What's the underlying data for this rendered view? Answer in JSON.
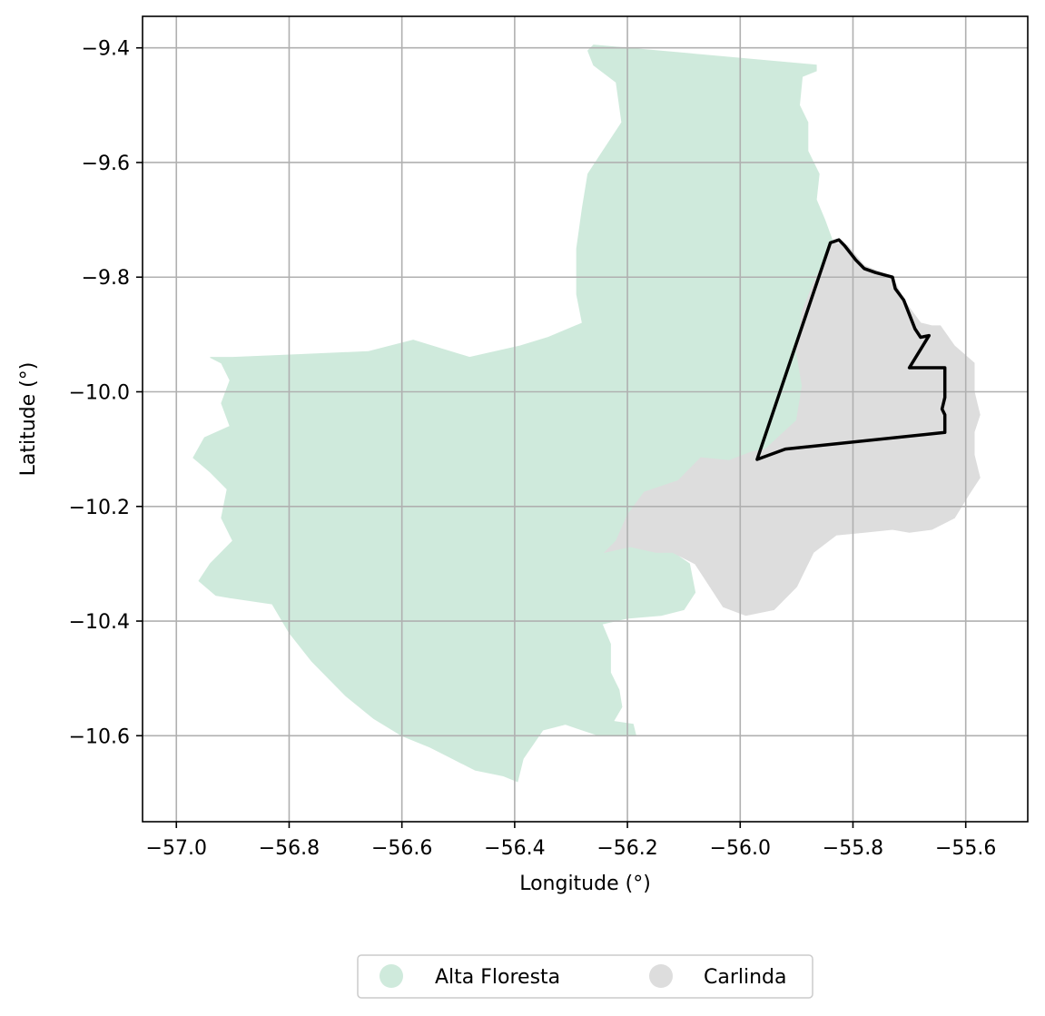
{
  "chart_data": {
    "type": "map",
    "xlabel": "Longitude (°)",
    "ylabel": "Latitude (°)",
    "xlim": [
      -57.06,
      -55.49
    ],
    "ylim": [
      -10.75,
      -9.345
    ],
    "x_ticks": [
      -57.0,
      -56.8,
      -56.6,
      -56.4,
      -56.2,
      -56.0,
      -55.8,
      -55.6
    ],
    "x_tick_labels": [
      "−57.0",
      "−56.8",
      "−56.6",
      "−56.4",
      "−56.2",
      "−56.0",
      "−55.8",
      "−55.6"
    ],
    "y_ticks": [
      -9.4,
      -9.6,
      -9.8,
      -10.0,
      -10.2,
      -10.4,
      -10.6
    ],
    "y_tick_labels": [
      "−9.4",
      "−9.6",
      "−9.8",
      "−10.0",
      "−10.2",
      "−10.4",
      "−10.6"
    ],
    "grid": true,
    "legend_position": "bottom-center",
    "regions": [
      {
        "name": "Alta Floresta",
        "color": "#cfeadc",
        "polygon": [
          [
            -56.27,
            -9.405
          ],
          [
            -56.26,
            -9.395
          ],
          [
            -55.865,
            -9.43
          ],
          [
            -55.865,
            -9.44
          ],
          [
            -55.89,
            -9.45
          ],
          [
            -55.895,
            -9.5
          ],
          [
            -55.88,
            -9.53
          ],
          [
            -55.88,
            -9.58
          ],
          [
            -55.86,
            -9.62
          ],
          [
            -55.865,
            -9.665
          ],
          [
            -55.85,
            -9.7
          ],
          [
            -55.835,
            -9.74
          ],
          [
            -55.85,
            -9.77
          ],
          [
            -55.87,
            -9.81
          ],
          [
            -55.89,
            -9.86
          ],
          [
            -55.9,
            -9.93
          ],
          [
            -55.89,
            -9.99
          ],
          [
            -55.9,
            -10.05
          ],
          [
            -55.955,
            -10.1
          ],
          [
            -55.98,
            -10.105
          ],
          [
            -56.02,
            -10.12
          ],
          [
            -56.07,
            -10.115
          ],
          [
            -56.11,
            -10.155
          ],
          [
            -56.17,
            -10.175
          ],
          [
            -56.2,
            -10.215
          ],
          [
            -56.22,
            -10.26
          ],
          [
            -56.24,
            -10.28
          ],
          [
            -56.195,
            -10.27
          ],
          [
            -56.15,
            -10.28
          ],
          [
            -56.12,
            -10.28
          ],
          [
            -56.09,
            -10.3
          ],
          [
            -56.08,
            -10.35
          ],
          [
            -56.1,
            -10.38
          ],
          [
            -56.14,
            -10.39
          ],
          [
            -56.2,
            -10.395
          ],
          [
            -56.245,
            -10.405
          ],
          [
            -56.23,
            -10.44
          ],
          [
            -56.23,
            -10.49
          ],
          [
            -56.215,
            -10.52
          ],
          [
            -56.21,
            -10.55
          ],
          [
            -56.225,
            -10.575
          ],
          [
            -56.19,
            -10.58
          ],
          [
            -56.185,
            -10.6
          ],
          [
            -56.25,
            -10.6
          ],
          [
            -56.31,
            -10.58
          ],
          [
            -56.35,
            -10.59
          ],
          [
            -56.385,
            -10.64
          ],
          [
            -56.395,
            -10.68
          ],
          [
            -56.42,
            -10.67
          ],
          [
            -56.47,
            -10.66
          ],
          [
            -56.51,
            -10.64
          ],
          [
            -56.55,
            -10.62
          ],
          [
            -56.6,
            -10.6
          ],
          [
            -56.65,
            -10.57
          ],
          [
            -56.7,
            -10.53
          ],
          [
            -56.76,
            -10.47
          ],
          [
            -56.8,
            -10.42
          ],
          [
            -56.83,
            -10.37
          ],
          [
            -56.9,
            -10.36
          ],
          [
            -56.93,
            -10.355
          ],
          [
            -56.96,
            -10.33
          ],
          [
            -56.94,
            -10.3
          ],
          [
            -56.92,
            -10.28
          ],
          [
            -56.9,
            -10.26
          ],
          [
            -56.92,
            -10.22
          ],
          [
            -56.91,
            -10.17
          ],
          [
            -56.94,
            -10.14
          ],
          [
            -56.97,
            -10.115
          ],
          [
            -56.95,
            -10.08
          ],
          [
            -56.905,
            -10.06
          ],
          [
            -56.92,
            -10.02
          ],
          [
            -56.905,
            -9.98
          ],
          [
            -56.92,
            -9.95
          ],
          [
            -56.94,
            -9.94
          ],
          [
            -56.9,
            -9.94
          ],
          [
            -56.78,
            -9.935
          ],
          [
            -56.66,
            -9.93
          ],
          [
            -56.58,
            -9.91
          ],
          [
            -56.48,
            -9.94
          ],
          [
            -56.39,
            -9.92
          ],
          [
            -56.34,
            -9.905
          ],
          [
            -56.28,
            -9.88
          ],
          [
            -56.29,
            -9.83
          ],
          [
            -56.29,
            -9.75
          ],
          [
            -56.28,
            -9.68
          ],
          [
            -56.27,
            -9.62
          ],
          [
            -56.24,
            -9.575
          ],
          [
            -56.21,
            -9.53
          ],
          [
            -56.22,
            -9.46
          ],
          [
            -56.26,
            -9.43
          ],
          [
            -56.27,
            -9.405
          ]
        ]
      },
      {
        "name": "Carlinda",
        "color": "#dddddd",
        "polygon": [
          [
            -55.835,
            -9.74
          ],
          [
            -55.81,
            -9.745
          ],
          [
            -55.78,
            -9.78
          ],
          [
            -55.73,
            -9.8
          ],
          [
            -55.71,
            -9.84
          ],
          [
            -55.68,
            -9.88
          ],
          [
            -55.66,
            -9.885
          ],
          [
            -55.645,
            -9.885
          ],
          [
            -55.62,
            -9.92
          ],
          [
            -55.585,
            -9.95
          ],
          [
            -55.585,
            -10.0
          ],
          [
            -55.575,
            -10.04
          ],
          [
            -55.585,
            -10.07
          ],
          [
            -55.585,
            -10.11
          ],
          [
            -55.575,
            -10.15
          ],
          [
            -55.595,
            -10.18
          ],
          [
            -55.62,
            -10.22
          ],
          [
            -55.66,
            -10.24
          ],
          [
            -55.7,
            -10.245
          ],
          [
            -55.73,
            -10.24
          ],
          [
            -55.78,
            -10.245
          ],
          [
            -55.83,
            -10.25
          ],
          [
            -55.87,
            -10.28
          ],
          [
            -55.9,
            -10.34
          ],
          [
            -55.94,
            -10.38
          ],
          [
            -55.99,
            -10.39
          ],
          [
            -56.03,
            -10.375
          ],
          [
            -56.06,
            -10.33
          ],
          [
            -56.08,
            -10.3
          ],
          [
            -56.12,
            -10.28
          ],
          [
            -56.15,
            -10.28
          ],
          [
            -56.195,
            -10.27
          ],
          [
            -56.24,
            -10.28
          ],
          [
            -56.22,
            -10.26
          ],
          [
            -56.2,
            -10.215
          ],
          [
            -56.17,
            -10.175
          ],
          [
            -56.11,
            -10.155
          ],
          [
            -56.07,
            -10.115
          ],
          [
            -56.02,
            -10.12
          ],
          [
            -55.98,
            -10.105
          ],
          [
            -55.955,
            -10.1
          ],
          [
            -55.9,
            -10.05
          ],
          [
            -55.89,
            -9.99
          ],
          [
            -55.9,
            -9.93
          ],
          [
            -55.89,
            -9.86
          ],
          [
            -55.87,
            -9.81
          ],
          [
            -55.85,
            -9.77
          ],
          [
            -55.835,
            -9.74
          ]
        ]
      }
    ],
    "outline": {
      "color": "#000000",
      "polygon": [
        [
          -55.97,
          -10.118
        ],
        [
          -55.84,
          -9.74
        ],
        [
          -55.825,
          -9.735
        ],
        [
          -55.815,
          -9.745
        ],
        [
          -55.795,
          -9.77
        ],
        [
          -55.78,
          -9.785
        ],
        [
          -55.76,
          -9.792
        ],
        [
          -55.73,
          -9.8
        ],
        [
          -55.725,
          -9.82
        ],
        [
          -55.71,
          -9.84
        ],
        [
          -55.7,
          -9.865
        ],
        [
          -55.69,
          -9.89
        ],
        [
          -55.68,
          -9.905
        ],
        [
          -55.665,
          -9.902
        ],
        [
          -55.7,
          -9.958
        ],
        [
          -55.637,
          -9.958
        ],
        [
          -55.637,
          -10.01
        ],
        [
          -55.642,
          -10.03
        ],
        [
          -55.637,
          -10.04
        ],
        [
          -55.637,
          -10.071
        ],
        [
          -55.92,
          -10.1
        ],
        [
          -55.97,
          -10.118
        ]
      ]
    },
    "legend": [
      {
        "label": "Alta Floresta",
        "color": "#cfeadc"
      },
      {
        "label": "Carlinda",
        "color": "#dddddd"
      }
    ]
  }
}
